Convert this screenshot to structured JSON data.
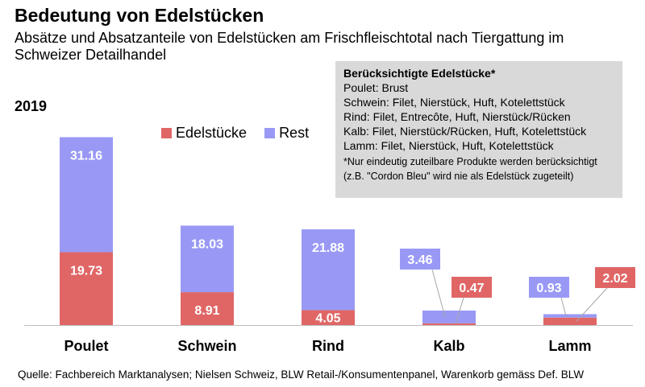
{
  "header": {
    "title": "Bedeutung von Edelstücken",
    "subtitle": "Absätze und Absatzanteile von Edelstücken am Frischfleischtotal nach Tiergattung im Schweizer Detailhandel",
    "year": "2019"
  },
  "infobox": {
    "title": "Berücksichtigte Edelstücke*",
    "lines": [
      "Poulet: Brust",
      "Schwein: Filet, Nierstück, Huft, Kotelettstück",
      "Rind: Filet, Entrecôte, Huft, Nierstück/Rücken",
      "Kalb: Filet, Nierstück/Rücken, Huft, Kotelettstück",
      "Lamm: Filet, Nierstück, Huft, Kotelettstück"
    ],
    "note": "*Nur eindeutig zuteilbare Produkte werden berücksichtigt (z.B. \"Cordon Bleu\" wird nie als Edelstück zugeteilt)"
  },
  "source": "Quelle: Fachbereich Marktanalysen; Nielsen Schweiz, BLW Retail-/Konsumentenpanel, Warenkorb gemäss Def. BLW",
  "colors": {
    "edel": "#e06666",
    "rest": "#9999f5",
    "axis": "#bfbfbf"
  },
  "chart_data": {
    "type": "bar",
    "stacked": true,
    "categories": [
      "Poulet",
      "Schwein",
      "Rind",
      "Kalb",
      "Lamm"
    ],
    "series": [
      {
        "name": "Edelstücke",
        "values": [
          19.73,
          8.91,
          4.05,
          0.47,
          2.02
        ]
      },
      {
        "name": "Rest",
        "values": [
          31.16,
          18.03,
          21.88,
          3.46,
          0.93
        ]
      }
    ],
    "labels": {
      "edel": [
        "19.73",
        "8.91",
        "4.05",
        "0.47",
        "2.02"
      ],
      "rest": [
        "31.16",
        "18.03",
        "21.88",
        "3.46",
        "0.93"
      ]
    },
    "ylim": [
      0,
      51
    ],
    "grid": false,
    "legend_position": "top"
  }
}
